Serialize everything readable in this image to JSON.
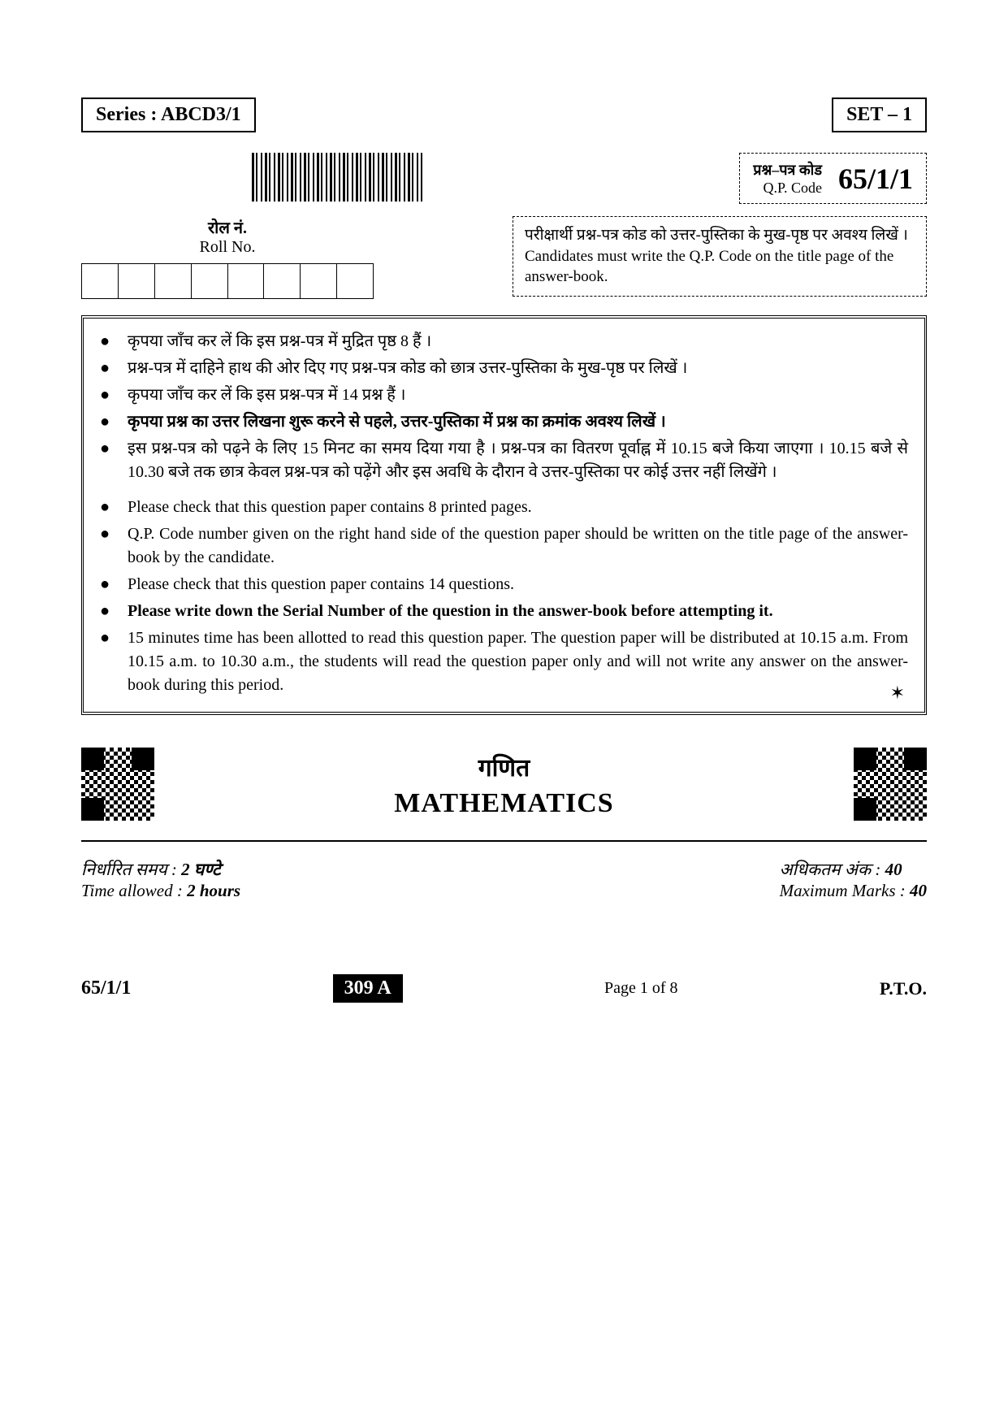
{
  "header": {
    "series_label": "Series : ABCD3/1",
    "set_label": "SET – 1"
  },
  "qpcode": {
    "label_hi": "प्रश्न–पत्र कोड",
    "label_en": "Q.P. Code",
    "code": "65/1/1"
  },
  "roll": {
    "label_hi": "रोल नं.",
    "label_en": "Roll No.",
    "cells": 8
  },
  "candidate_note": {
    "hi": "परीक्षार्थी प्रश्न-पत्र कोड को उत्तर-पुस्तिका के मुख-पृष्ठ पर अवश्य लिखें ।",
    "en": "Candidates must write the Q.P. Code on the title page of the answer-book."
  },
  "instructions_hi": [
    {
      "text": "कृपया जाँच कर लें कि इस प्रश्न-पत्र में मुद्रित पृष्ठ 8 हैं ।",
      "bold": false
    },
    {
      "text": "प्रश्न-पत्र में दाहिने हाथ की ओर दिए गए प्रश्न-पत्र कोड को छात्र उत्तर-पुस्तिका के मुख-पृष्ठ पर लिखें ।",
      "bold": false
    },
    {
      "text": "कृपया जाँच कर लें कि इस प्रश्न-पत्र में 14 प्रश्न हैं ।",
      "bold": false
    },
    {
      "text": "कृपया प्रश्न का उत्तर लिखना शुरू करने से पहले, उत्तर-पुस्तिका में प्रश्न का क्रमांक अवश्य लिखें ।",
      "bold": true
    },
    {
      "text": "इस प्रश्न-पत्र को पढ़ने के लिए 15 मिनट का समय दिया गया है । प्रश्न-पत्र का वितरण पूर्वाह्न में 10.15 बजे किया जाएगा । 10.15 बजे से 10.30 बजे तक छात्र केवल प्रश्न-पत्र को पढ़ेंगे और इस अवधि के दौरान वे उत्तर-पुस्तिका पर कोई उत्तर नहीं लिखेंगे ।",
      "bold": false
    }
  ],
  "instructions_en": [
    {
      "text": "Please check that this question paper contains 8 printed pages.",
      "bold": false
    },
    {
      "text": "Q.P. Code number given on the right hand side of the question paper should be written on the title page of the answer-book by the candidate.",
      "bold": false
    },
    {
      "text": "Please check that this question paper contains 14 questions.",
      "bold": false
    },
    {
      "text": "Please write down the Serial Number of the question in the answer-book before attempting it.",
      "bold": true
    },
    {
      "text": "15 minutes time has been allotted to read this question paper. The question paper will be distributed at 10.15 a.m. From 10.15 a.m. to 10.30 a.m., the students will read the question paper only and will not write any answer on the answer-book during this period.",
      "bold": false
    }
  ],
  "subject": {
    "hi": "गणित",
    "en": "MATHEMATICS"
  },
  "time_marks": {
    "time_hi": "निर्धारित समय :",
    "time_hi_val": "2 घण्टे",
    "time_en": "Time allowed :",
    "time_en_val": "2 hours",
    "marks_hi": "अधिकतम अंक :",
    "marks_hi_val": "40",
    "marks_en": "Maximum Marks :",
    "marks_en_val": "40"
  },
  "footer": {
    "code": "65/1/1",
    "batch": "309 A",
    "page": "Page 1 of 8",
    "pto": "P.T.O."
  },
  "colors": {
    "text": "#000000",
    "background": "#ffffff",
    "inverse_bg": "#000000",
    "inverse_text": "#ffffff"
  },
  "typography": {
    "body_fontsize_pt": 15,
    "title_fontsize_pt": 26,
    "code_fontsize_pt": 27,
    "font_family": "serif"
  }
}
